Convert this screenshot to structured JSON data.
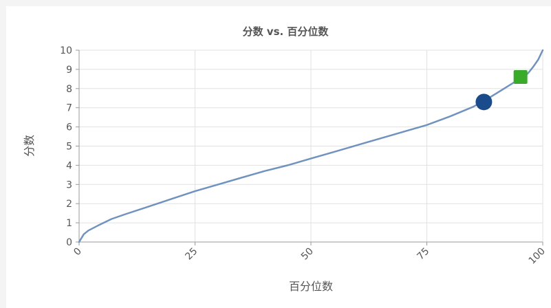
{
  "chart_data": {
    "type": "line",
    "title": "分数 vs. 百分位数",
    "xlabel": "百分位数",
    "ylabel": "分数",
    "xlim": [
      0,
      100
    ],
    "ylim": [
      0,
      10
    ],
    "x_ticks": [
      0,
      25,
      50,
      75,
      100
    ],
    "y_ticks": [
      0,
      1,
      2,
      3,
      4,
      5,
      6,
      7,
      8,
      9,
      10
    ],
    "grid": true,
    "series": [
      {
        "color": "#7092be",
        "x": [
          0,
          1,
          2,
          4,
          7,
          10,
          15,
          20,
          25,
          30,
          35,
          40,
          45,
          50,
          55,
          60,
          65,
          70,
          75,
          80,
          85,
          88,
          90,
          92,
          94,
          96,
          97,
          98,
          99,
          100
        ],
        "y": [
          0,
          0.4,
          0.6,
          0.85,
          1.2,
          1.45,
          1.85,
          2.25,
          2.65,
          3.0,
          3.35,
          3.7,
          4.0,
          4.35,
          4.7,
          5.05,
          5.4,
          5.75,
          6.1,
          6.55,
          7.05,
          7.45,
          7.75,
          8.05,
          8.35,
          8.6,
          8.85,
          9.15,
          9.5,
          10.0
        ]
      }
    ],
    "markers": [
      {
        "shape": "circle",
        "color": "#1a4c8b",
        "x": 87.3,
        "y": 7.3
      },
      {
        "shape": "square",
        "color": "#3aaa2a",
        "x": 95.2,
        "y": 8.6
      }
    ]
  }
}
